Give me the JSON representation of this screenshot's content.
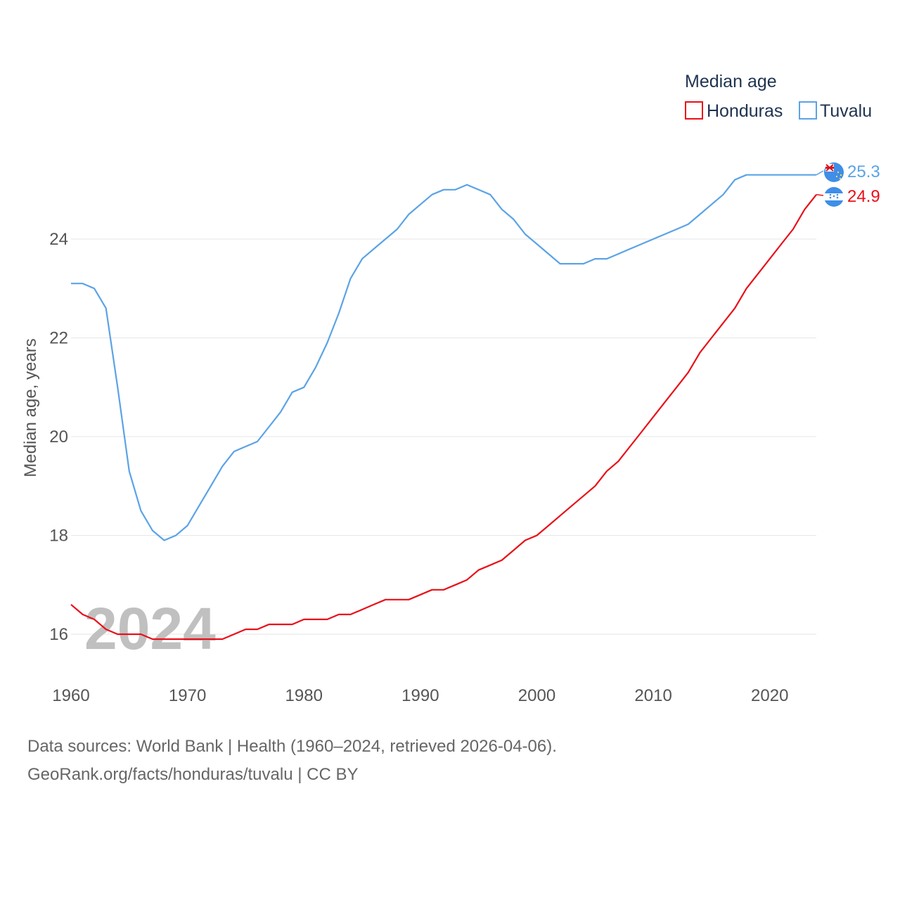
{
  "chart_data": {
    "type": "line",
    "title": "Median age",
    "ylabel": "Median age, years",
    "xlabel": "",
    "xlim": [
      1960,
      2024
    ],
    "ylim": [
      15,
      25.5
    ],
    "x_ticks": [
      1960,
      1970,
      1980,
      1990,
      2000,
      2010,
      2020
    ],
    "y_ticks": [
      16,
      18,
      20,
      22,
      24
    ],
    "year_watermark": "2024",
    "legend_title": "Median age",
    "legend_position": "top-right",
    "x": [
      1960,
      1961,
      1962,
      1963,
      1964,
      1965,
      1966,
      1967,
      1968,
      1969,
      1970,
      1971,
      1972,
      1973,
      1974,
      1975,
      1976,
      1977,
      1978,
      1979,
      1980,
      1981,
      1982,
      1983,
      1984,
      1985,
      1986,
      1987,
      1988,
      1989,
      1990,
      1991,
      1992,
      1993,
      1994,
      1995,
      1996,
      1997,
      1998,
      1999,
      2000,
      2001,
      2002,
      2003,
      2004,
      2005,
      2006,
      2007,
      2008,
      2009,
      2010,
      2011,
      2012,
      2013,
      2014,
      2015,
      2016,
      2017,
      2018,
      2019,
      2020,
      2021,
      2022,
      2023,
      2024
    ],
    "series": [
      {
        "name": "Honduras",
        "color": "#e8101a",
        "end_label": "24.9",
        "flag_icon": "honduras-flag-icon",
        "values": [
          16.6,
          16.4,
          16.3,
          16.1,
          16.0,
          16.0,
          16.0,
          15.9,
          15.9,
          15.9,
          15.9,
          15.9,
          15.9,
          15.9,
          16.0,
          16.1,
          16.1,
          16.2,
          16.2,
          16.2,
          16.3,
          16.3,
          16.3,
          16.4,
          16.4,
          16.5,
          16.6,
          16.7,
          16.7,
          16.7,
          16.8,
          16.9,
          16.9,
          17.0,
          17.1,
          17.3,
          17.4,
          17.5,
          17.7,
          17.9,
          18.0,
          18.2,
          18.4,
          18.6,
          18.8,
          19.0,
          19.3,
          19.5,
          19.8,
          20.1,
          20.4,
          20.7,
          21.0,
          21.3,
          21.7,
          22.0,
          22.3,
          22.6,
          23.0,
          23.3,
          23.6,
          23.9,
          24.2,
          24.6,
          24.9
        ]
      },
      {
        "name": "Tuvalu",
        "color": "#5ba3e6",
        "end_label": "25.3",
        "flag_icon": "tuvalu-flag-icon",
        "values": [
          23.1,
          23.1,
          23.0,
          22.6,
          21.0,
          19.3,
          18.5,
          18.1,
          17.9,
          18.0,
          18.2,
          18.6,
          19.0,
          19.4,
          19.7,
          19.8,
          19.9,
          20.2,
          20.5,
          20.9,
          21.0,
          21.4,
          21.9,
          22.5,
          23.2,
          23.6,
          23.8,
          24.0,
          24.2,
          24.5,
          24.7,
          24.9,
          25.0,
          25.0,
          25.1,
          25.0,
          24.9,
          24.6,
          24.4,
          24.1,
          23.9,
          23.7,
          23.5,
          23.5,
          23.5,
          23.6,
          23.6,
          23.7,
          23.8,
          23.9,
          24.0,
          24.1,
          24.2,
          24.3,
          24.5,
          24.7,
          24.9,
          25.2,
          25.3,
          25.3,
          25.3,
          25.3,
          25.3,
          25.3,
          25.3
        ]
      }
    ]
  },
  "source": {
    "line1": "Data sources: World Bank | Health (1960–2024, retrieved 2026-04-06).",
    "line2": "GeoRank.org/facts/honduras/tuvalu | CC BY"
  }
}
